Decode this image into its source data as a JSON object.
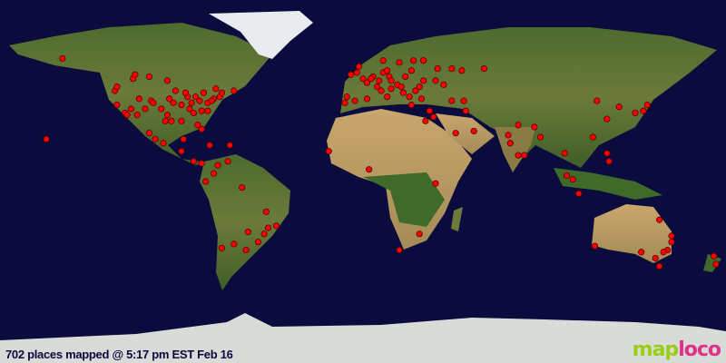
{
  "caption": "702 places mapped @ 5:17 pm EST Feb 16",
  "logo": {
    "part1": "map",
    "part2": "loco"
  },
  "colors": {
    "ocean": "#0b0b3d",
    "marker": "#ff0000",
    "logo_green": "#9acd14",
    "logo_pink": "#e0308a"
  },
  "projection": "equirectangular",
  "markers_lonlat": [
    [
      -149,
      61
    ],
    [
      -157,
      21
    ],
    [
      -123,
      45
    ],
    [
      -122,
      38
    ],
    [
      -118,
      34
    ],
    [
      -117,
      33
    ],
    [
      -112,
      33
    ],
    [
      -105,
      40
    ],
    [
      -97,
      33
    ],
    [
      -95,
      30
    ],
    [
      -90,
      30
    ],
    [
      -87,
      42
    ],
    [
      -84,
      34
    ],
    [
      -80,
      26
    ],
    [
      -74,
      41
    ],
    [
      -71,
      42
    ],
    [
      -77,
      39
    ],
    [
      -80,
      35
    ],
    [
      -83,
      42
    ],
    [
      -93,
      45
    ],
    [
      -96,
      41
    ],
    [
      -104,
      39
    ],
    [
      -111,
      41
    ],
    [
      -122,
      47
    ],
    [
      -114,
      51
    ],
    [
      -113,
      53
    ],
    [
      -106,
      52
    ],
    [
      -97,
      50
    ],
    [
      -79,
      44
    ],
    [
      -73,
      46
    ],
    [
      -64,
      45
    ],
    [
      -86,
      36
    ],
    [
      -90,
      38
    ],
    [
      -98,
      30
    ],
    [
      -82,
      28
    ],
    [
      -88,
      44
    ],
    [
      -75,
      40
    ],
    [
      -77,
      35
    ],
    [
      -100,
      36
    ],
    [
      -94,
      39
    ],
    [
      -108,
      36
    ],
    [
      -115,
      36
    ],
    [
      -85,
      39
    ],
    [
      -81,
      40
    ],
    [
      -70,
      44
    ],
    [
      -66,
      18
    ],
    [
      -99,
      19
    ],
    [
      -103,
      21
    ],
    [
      -106,
      24
    ],
    [
      -89,
      21
    ],
    [
      -90,
      15
    ],
    [
      -84,
      10
    ],
    [
      -80,
      9
    ],
    [
      -76,
      18
    ],
    [
      -74,
      4
    ],
    [
      -67,
      10
    ],
    [
      -78,
      0
    ],
    [
      -72,
      8
    ],
    [
      -57,
      -25
    ],
    [
      -47,
      -23
    ],
    [
      -43,
      -22
    ],
    [
      -49,
      -26
    ],
    [
      -58,
      -34
    ],
    [
      -70,
      -33
    ],
    [
      -64,
      -31
    ],
    [
      -60,
      -3
    ],
    [
      -48,
      -15
    ],
    [
      -52,
      -30
    ],
    [
      -9,
      39
    ],
    [
      -4,
      40
    ],
    [
      2,
      41
    ],
    [
      -3,
      54
    ],
    [
      0,
      51
    ],
    [
      2,
      49
    ],
    [
      5,
      52
    ],
    [
      8,
      50
    ],
    [
      13,
      52
    ],
    [
      10,
      54
    ],
    [
      18,
      59
    ],
    [
      10,
      60
    ],
    [
      25,
      60
    ],
    [
      24,
      55
    ],
    [
      21,
      52
    ],
    [
      17,
      48
    ],
    [
      14,
      50
    ],
    [
      12,
      42
    ],
    [
      9,
      45
    ],
    [
      14,
      46
    ],
    [
      19,
      47
    ],
    [
      26,
      45
    ],
    [
      23,
      42
    ],
    [
      24,
      38
    ],
    [
      29,
      41
    ],
    [
      30,
      50
    ],
    [
      37,
      56
    ],
    [
      30,
      60
    ],
    [
      40,
      48
    ],
    [
      44,
      40
    ],
    [
      50,
      40
    ],
    [
      35,
      32
    ],
    [
      33,
      35
    ],
    [
      7,
      47
    ],
    [
      4,
      51
    ],
    [
      -6,
      53
    ],
    [
      -2,
      57
    ],
    [
      12,
      55
    ],
    [
      -8,
      42
    ],
    [
      20,
      44
    ],
    [
      28,
      47
    ],
    [
      60,
      56
    ],
    [
      49,
      55
    ],
    [
      36,
      50
    ],
    [
      44,
      56
    ],
    [
      46,
      24
    ],
    [
      55,
      25
    ],
    [
      51,
      35
    ],
    [
      73,
      19
    ],
    [
      77,
      13
    ],
    [
      80,
      13
    ],
    [
      77,
      28
    ],
    [
      72,
      23
    ],
    [
      88,
      22
    ],
    [
      85,
      27
    ],
    [
      100,
      14
    ],
    [
      104,
      1
    ],
    [
      101,
      3
    ],
    [
      107,
      -6
    ],
    [
      121,
      14
    ],
    [
      122,
      10
    ],
    [
      114,
      22
    ],
    [
      121,
      31
    ],
    [
      116,
      40
    ],
    [
      127,
      37
    ],
    [
      139,
      35
    ],
    [
      141,
      38
    ],
    [
      135,
      34
    ],
    [
      115,
      -32
    ],
    [
      145,
      -38
    ],
    [
      151,
      -34
    ],
    [
      153,
      -27
    ],
    [
      138,
      -35
    ],
    [
      149,
      -35
    ],
    [
      147,
      -42
    ],
    [
      174,
      -37
    ],
    [
      175,
      -41
    ],
    [
      153,
      -30
    ],
    [
      147,
      -19
    ],
    [
      31,
      30
    ],
    [
      36,
      -1
    ],
    [
      28,
      -26
    ],
    [
      18,
      -34
    ],
    [
      3,
      6
    ],
    [
      -17,
      15
    ]
  ]
}
